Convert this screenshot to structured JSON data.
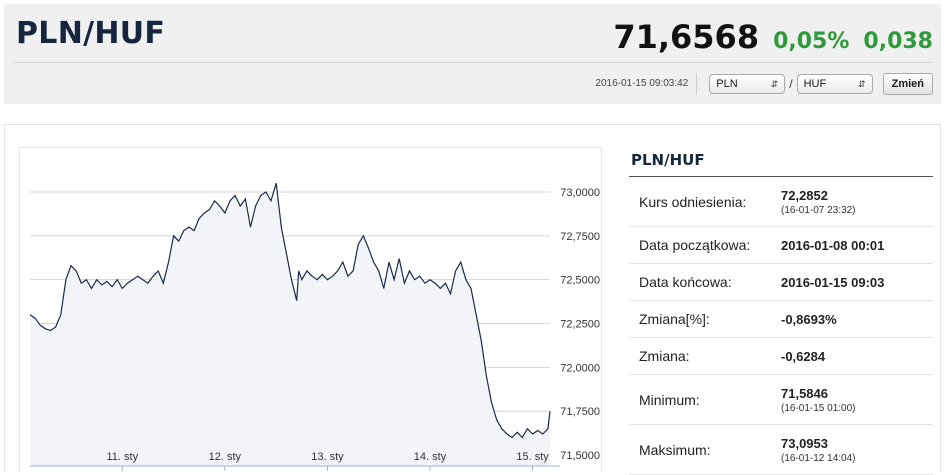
{
  "header": {
    "pair": "PLN/HUF",
    "price": "71,6568",
    "change_pct": "0,05%",
    "change_abs": "0,038",
    "timestamp": "2016-01-15 09:03:42",
    "from_currency": "PLN",
    "to_currency": "HUF",
    "separator": "/",
    "change_button": "Zmień"
  },
  "colors": {
    "positive": "#2e9a3a",
    "title": "#16263f",
    "line": "#1b2a4a"
  },
  "stats": {
    "title": "PLN/HUF",
    "rows": [
      {
        "label": "Kurs odniesienia:",
        "value": "72,2852",
        "sub": "(16-01-07 23:32)"
      },
      {
        "label": "Data początkowa:",
        "value": "2016-01-08 00:01",
        "sub": ""
      },
      {
        "label": "Data końcowa:",
        "value": "2016-01-15 09:03",
        "sub": ""
      },
      {
        "label": "Zmiana[%]:",
        "value": "-0,8693%",
        "sub": ""
      },
      {
        "label": "Zmiana:",
        "value": "-0,6284",
        "sub": ""
      },
      {
        "label": "Minimum:",
        "value": "71,5846",
        "sub": "(16-01-15 01:00)"
      },
      {
        "label": "Maksimum:",
        "value": "73,0953",
        "sub": "(16-01-12 14:04)"
      }
    ]
  },
  "chart_data": {
    "type": "line",
    "ylim": [
      71.5,
      73.1
    ],
    "xlim": [
      10.1,
      15.17
    ],
    "y_tick_values": [
      71.5,
      71.75,
      72.0,
      72.25,
      72.5,
      72.75,
      73.0
    ],
    "y_tick_labels": [
      "71,5000",
      "71,7500",
      "72,0000",
      "72,2500",
      "72,5000",
      "72,7500",
      "73,0000"
    ],
    "x_tick_values": [
      11,
      12,
      13,
      14,
      15
    ],
    "x_tick_labels": [
      "11. sty",
      "12. sty",
      "13. sty",
      "14. sty",
      "15. sty"
    ],
    "grid": true,
    "series": [
      {
        "x": [
          10.1,
          10.15,
          10.2,
          10.25,
          10.3,
          10.35,
          10.4,
          10.45,
          10.5,
          10.55,
          10.6,
          10.65,
          10.7,
          10.75,
          10.8,
          10.85,
          10.9,
          10.95,
          11.0,
          11.05,
          11.1,
          11.15,
          11.2,
          11.25,
          11.3,
          11.35,
          11.4,
          11.45,
          11.5,
          11.55,
          11.6,
          11.65,
          11.7,
          11.75,
          11.8,
          11.85,
          11.9,
          11.95,
          12.0,
          12.05,
          12.1,
          12.15,
          12.2,
          12.25,
          12.3,
          12.35,
          12.4,
          12.45,
          12.5,
          12.55,
          12.6,
          12.65,
          12.7,
          12.72,
          12.75,
          12.8,
          12.85,
          12.9,
          12.95,
          13.0,
          13.05,
          13.1,
          13.15,
          13.2,
          13.25,
          13.3,
          13.35,
          13.4,
          13.45,
          13.5,
          13.55,
          13.6,
          13.65,
          13.7,
          13.75,
          13.8,
          13.85,
          13.9,
          13.95,
          14.0,
          14.05,
          14.1,
          14.15,
          14.2,
          14.25,
          14.3,
          14.35,
          14.4,
          14.45,
          14.5,
          14.55,
          14.6,
          14.65,
          14.7,
          14.75,
          14.8,
          14.85,
          14.9,
          14.95,
          15.0,
          15.05,
          15.1,
          15.15,
          15.17
        ],
        "y": [
          72.3,
          72.28,
          72.24,
          72.22,
          72.21,
          72.23,
          72.3,
          72.5,
          72.58,
          72.55,
          72.48,
          72.5,
          72.45,
          72.5,
          72.47,
          72.49,
          72.46,
          72.5,
          72.45,
          72.48,
          72.5,
          72.52,
          72.5,
          72.48,
          72.52,
          72.55,
          72.48,
          72.6,
          72.75,
          72.72,
          72.78,
          72.8,
          72.78,
          72.85,
          72.88,
          72.9,
          72.95,
          72.92,
          72.88,
          72.95,
          72.98,
          72.92,
          72.96,
          72.8,
          72.92,
          72.98,
          73.0,
          72.95,
          73.05,
          72.8,
          72.65,
          72.5,
          72.38,
          72.55,
          72.5,
          72.55,
          72.52,
          72.5,
          72.53,
          72.5,
          72.52,
          72.55,
          72.6,
          72.52,
          72.55,
          72.7,
          72.75,
          72.68,
          72.6,
          72.55,
          72.45,
          72.6,
          72.5,
          72.62,
          72.48,
          72.55,
          72.5,
          72.52,
          72.48,
          72.5,
          72.48,
          72.45,
          72.48,
          72.42,
          72.55,
          72.6,
          72.5,
          72.45,
          72.3,
          72.15,
          71.95,
          71.8,
          71.7,
          71.65,
          71.62,
          71.6,
          71.63,
          71.6,
          71.65,
          71.62,
          71.64,
          71.62,
          71.65,
          71.75
        ]
      }
    ]
  }
}
